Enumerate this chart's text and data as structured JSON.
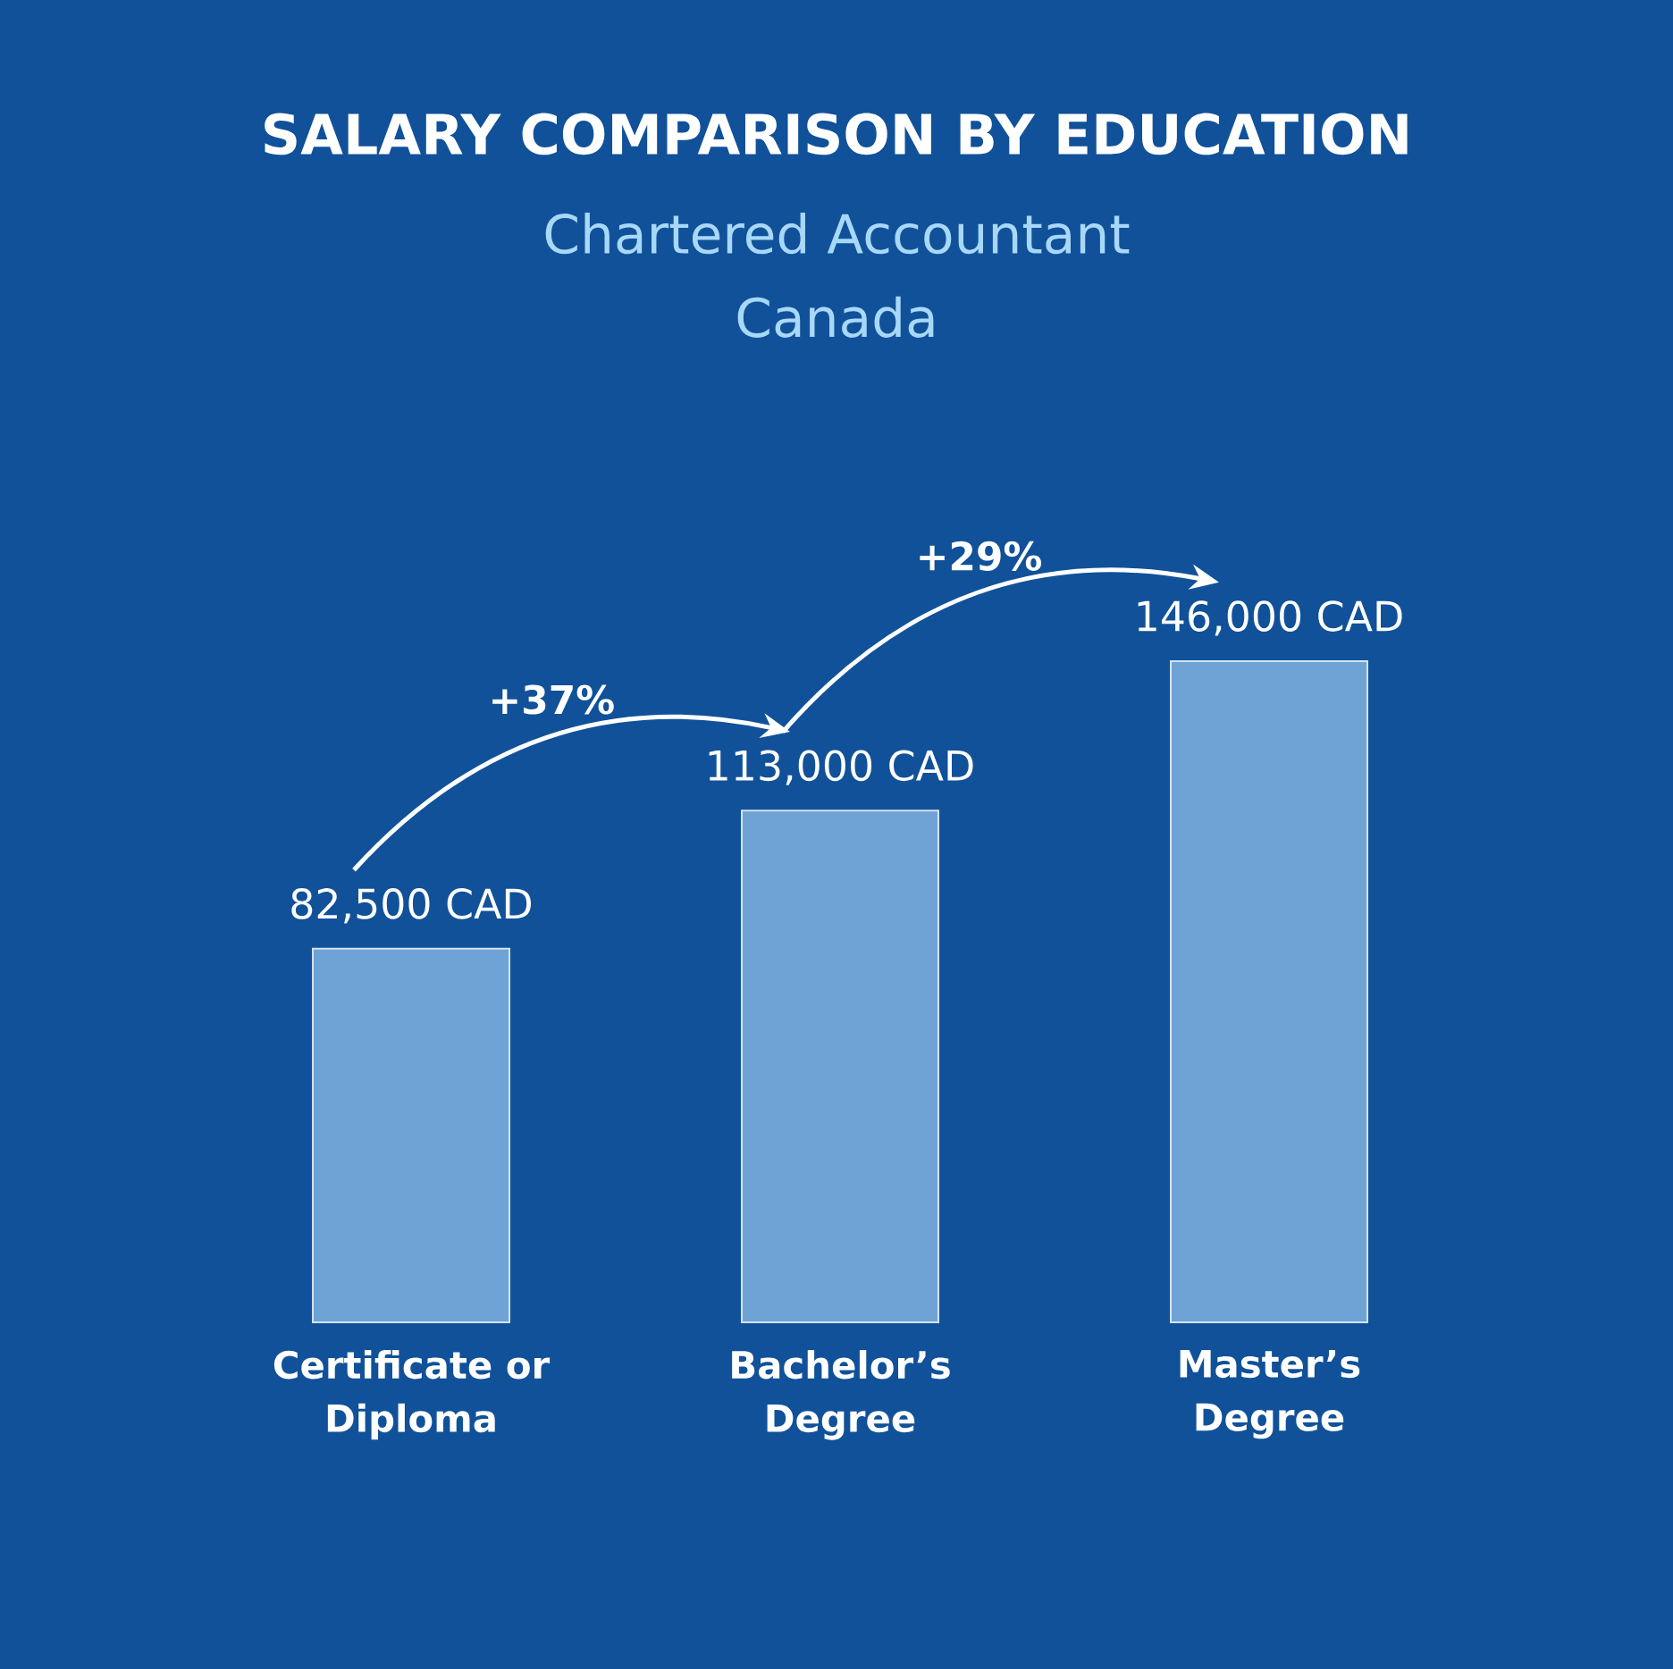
{
  "chart_data": {
    "type": "bar",
    "title": "SALARY COMPARISON BY EDUCATION",
    "subtitle": "Chartered Accountant Canada",
    "categories": [
      "Certificate or Diploma",
      "Bachelor’s Degree",
      "Master’s Degree"
    ],
    "values": [
      82500,
      113000,
      146000
    ],
    "value_labels": [
      "82,500 CAD",
      "113,000 CAD",
      "146,000 CAD"
    ],
    "color": "#6fa3d6",
    "annotations": [
      "+37%",
      "+29%"
    ]
  }
}
